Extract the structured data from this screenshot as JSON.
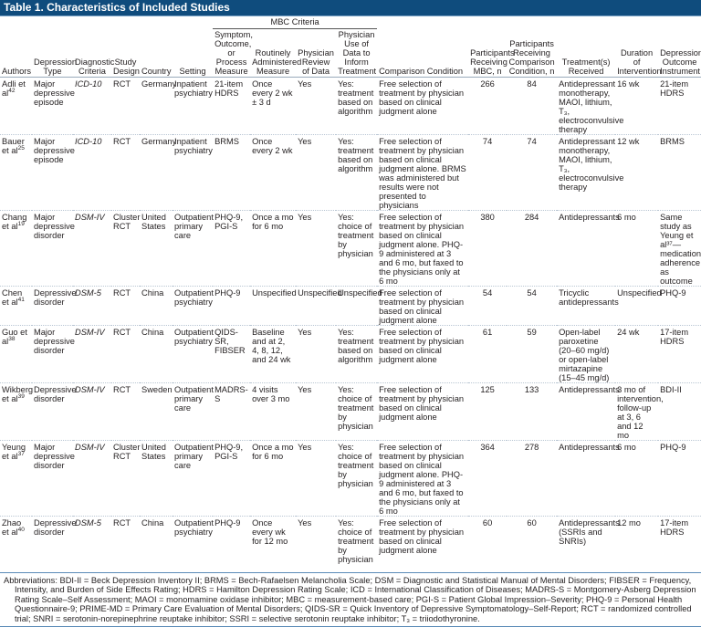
{
  "title": "Table 1. Characteristics of Included Studies",
  "group_header": "MBC Criteria",
  "headers": [
    "Authors",
    "Depression Type",
    "Diagnostic Criteria",
    "Study Design",
    "Country",
    "Setting",
    "Symptom, Outcome, or Process Measure",
    "Routinely Administered Measure",
    "Physician Review of Data",
    "Physician Use of Data to Inform Treatment",
    "Comparison Condition",
    "Participants Receiving MBC, n",
    "Participants Receiving Comparison Condition, n",
    "Treatment(s) Received",
    "Duration of Intervention",
    "Depression Outcome Instrument"
  ],
  "rows": [
    {
      "author": "Adli et al",
      "ref": "42",
      "type": "Major depressive episode",
      "criteria": "ICD-10",
      "design": "RCT",
      "country": "Germany",
      "setting": "Inpatient psychiatry",
      "measure": "21-item HDRS",
      "routine": "Once every 2 wk ± 3 d",
      "review": "Yes",
      "use": "Yes: treatment based on algorithm",
      "comparison": "Free selection of treatment by physician based on clinical judgment alone",
      "n_mbc": "266",
      "n_comp": "84",
      "treatment": "Antidepressant monotherapy, MAOI, lithium, T₃, electroconvulsive therapy",
      "duration": "16 wk",
      "instrument": "21-item HDRS"
    },
    {
      "author": "Bauer et al",
      "ref": "25",
      "type": "Major depressive episode",
      "criteria": "ICD-10",
      "design": "RCT",
      "country": "Germany",
      "setting": "Inpatient psychiatry",
      "measure": "BRMS",
      "routine": "Once every 2 wk",
      "review": "Yes",
      "use": "Yes: treatment based on algorithm",
      "comparison": "Free selection of treatment by physician based on clinical judgment alone. BRMS was administered but results were not presented to physicians",
      "n_mbc": "74",
      "n_comp": "74",
      "treatment": "Antidepressant monotherapy, MAOI, lithium, T₃, electroconvulsive therapy",
      "duration": "12 wk",
      "instrument": "BRMS"
    },
    {
      "author": "Chang et al",
      "ref": "19",
      "type": "Major depressive disorder",
      "criteria": "DSM-IV",
      "design": "Cluster RCT",
      "country": "United States",
      "setting": "Outpatient primary care",
      "measure": "PHQ-9, PGI-S",
      "routine": "Once a mo for 6 mo",
      "review": "Yes",
      "use": "Yes: choice of treatment by physician",
      "comparison": "Free selection of treatment by physician based on clinical judgment alone. PHQ-9 administered at 3 and 6 mo, but faxed to the physicians only at 6 mo",
      "n_mbc": "380",
      "n_comp": "284",
      "treatment": "Antidepressants",
      "duration": "6 mo",
      "instrument": "Same study as Yeung et al³⁷—medication adherence as outcome"
    },
    {
      "author": "Chen et al",
      "ref": "41",
      "type": "Depressive disorder",
      "criteria": "DSM-5",
      "design": "RCT",
      "country": "China",
      "setting": "Outpatient psychiatry",
      "measure": "PHQ-9",
      "routine": "Unspecified",
      "review": "Unspecified",
      "use": "Unspecified",
      "comparison": "Free selection of treatment by physician based on clinical judgment alone",
      "n_mbc": "54",
      "n_comp": "54",
      "treatment": "Tricyclic antidepressants",
      "duration": "Unspecified",
      "instrument": "PHQ-9"
    },
    {
      "author": "Guo et al",
      "ref": "38",
      "type": "Major depressive disorder",
      "criteria": "DSM-IV",
      "design": "RCT",
      "country": "China",
      "setting": "Outpatient psychiatry",
      "measure": "QIDS-SR, FIBSER",
      "routine": "Baseline and at 2, 4, 8, 12, and 24 wk",
      "review": "Yes",
      "use": "Yes: treatment based on algorithm",
      "comparison": "Free selection of treatment by physician based on clinical judgment alone",
      "n_mbc": "61",
      "n_comp": "59",
      "treatment": "Open-label paroxetine (20–60 mg/d) or open-label mirtazapine (15–45 mg/d)",
      "duration": "24 wk",
      "instrument": "17-item HDRS"
    },
    {
      "author": "Wikberg et al",
      "ref": "39",
      "type": "Depressive disorder",
      "criteria": "DSM-IV",
      "design": "RCT",
      "country": "Sweden",
      "setting": "Outpatient primary care",
      "measure": "MADRS-S",
      "routine": "4 visits over 3 mo",
      "review": "Yes",
      "use": "Yes: choice of treatment by physician",
      "comparison": "Free selection of treatment by physician based on clinical judgment alone",
      "n_mbc": "125",
      "n_comp": "133",
      "treatment": "Antidepressants",
      "duration": "3 mo of intervention, follow-up at 3, 6 and 12 mo",
      "instrument": "BDI-II"
    },
    {
      "author": "Yeung et al",
      "ref": "37",
      "type": "Major depressive disorder",
      "criteria": "DSM-IV",
      "design": "Cluster RCT",
      "country": "United States",
      "setting": "Outpatient primary care",
      "measure": "PHQ-9, PGI-S",
      "routine": "Once a mo for 6 mo",
      "review": "Yes",
      "use": "Yes: choice of treatment by physician",
      "comparison": "Free selection of treatment by physician based on clinical judgment alone. PHQ-9 administered at 3 and 6 mo, but faxed to the physicians only at 6 mo",
      "n_mbc": "364",
      "n_comp": "278",
      "treatment": "Antidepressants",
      "duration": "6 mo",
      "instrument": "PHQ-9"
    },
    {
      "author": "Zhao et al",
      "ref": "40",
      "type": "Depressive disorder",
      "criteria": "DSM-5",
      "design": "RCT",
      "country": "China",
      "setting": "Outpatient psychiatry",
      "measure": "PHQ-9",
      "routine": "Once every wk for 12 mo",
      "review": "Yes",
      "use": "Yes: choice of treatment by physician",
      "comparison": "Free selection of treatment by physician based on clinical judgment alone",
      "n_mbc": "60",
      "n_comp": "60",
      "treatment": "Antidepressants (SSRIs and SNRIs)",
      "duration": "12 mo",
      "instrument": "17-item HDRS"
    }
  ],
  "abbreviations": "Abbreviations: BDI-II = Beck Depression Inventory II; BRMS = Bech-Rafaelsen Melancholia Scale; DSM = Diagnostic and Statistical Manual of Mental Disorders; FIBSER = Frequency, Intensity, and Burden of Side Effects Rating; HDRS = Hamilton Depression Rating Scale; ICD = International Classification of Diseases; MADRS-S = Montgomery-Asberg Depression Rating Scale–Self Assessment; MAOI = monomamine oxidase inhibitor; MBC = measurement-based care; PGI-S = Patient Global Impression–Severity; PHQ-9 = Personal Health Questionnaire-9; PRIME-MD = Primary Care Evaluation of Mental Disorders; QIDS-SR = Quick Inventory of Depressive Symptomatology–Self-Report; RCT = randomized controlled trial; SNRI = serotonin-norepinephrine reuptake inhibitor; SSRI = selective serotonin reuptake inhibitor; T₃ = triiodothyronine."
}
